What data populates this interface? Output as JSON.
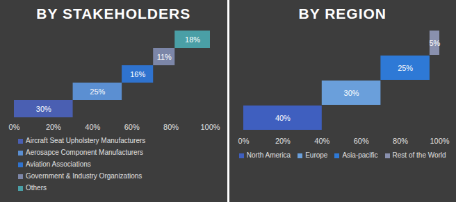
{
  "chart_data": [
    {
      "type": "bar",
      "title": "BY STAKEHOLDERS",
      "orientation": "horizontal",
      "stacked": true,
      "categories": [
        "Aircraft Seat Upholstery Manufacturers",
        "Aerosapce Component Manufacturers",
        "Aviation Associations",
        "Government & Industry Organizations",
        "Others"
      ],
      "values": [
        30,
        25,
        16,
        11,
        18
      ],
      "value_labels": [
        "30%",
        "25%",
        "16%",
        "11%",
        "18%"
      ],
      "colors": [
        "#4a5fb2",
        "#5b8fd2",
        "#2f73cf",
        "#7c86a8",
        "#4a9fa6"
      ],
      "xlim": [
        0,
        100
      ],
      "xticks": [
        {
          "value": 0,
          "label": "0%"
        },
        {
          "value": 20,
          "label": "20%"
        },
        {
          "value": 40,
          "label": "40%"
        },
        {
          "value": 60,
          "label": "60%"
        },
        {
          "value": 80,
          "label": "80%"
        },
        {
          "value": 100,
          "label": "100%"
        }
      ],
      "data_labels": true,
      "tick_labels": "x",
      "legend": "bottom"
    },
    {
      "type": "bar",
      "title": "BY REGION",
      "orientation": "horizontal",
      "stacked": true,
      "categories": [
        "North America",
        "Europe",
        "Asia-pacific",
        "Rest of the World"
      ],
      "values": [
        40,
        30,
        25,
        5
      ],
      "value_labels": [
        "40%",
        "30%",
        "25%",
        "5%"
      ],
      "colors": [
        "#3f5fbf",
        "#6a9fdb",
        "#2e79d6",
        "#8990ae"
      ],
      "xlim": [
        0,
        100
      ],
      "xticks": [
        {
          "value": 0,
          "label": "0%"
        },
        {
          "value": 20,
          "label": "20%"
        },
        {
          "value": 40,
          "label": "40%"
        },
        {
          "value": 60,
          "label": "60%"
        },
        {
          "value": 80,
          "label": "80%"
        },
        {
          "value": 100,
          "label": "100%"
        }
      ],
      "data_labels": true,
      "tick_labels": "x",
      "legend": "bottom"
    }
  ]
}
